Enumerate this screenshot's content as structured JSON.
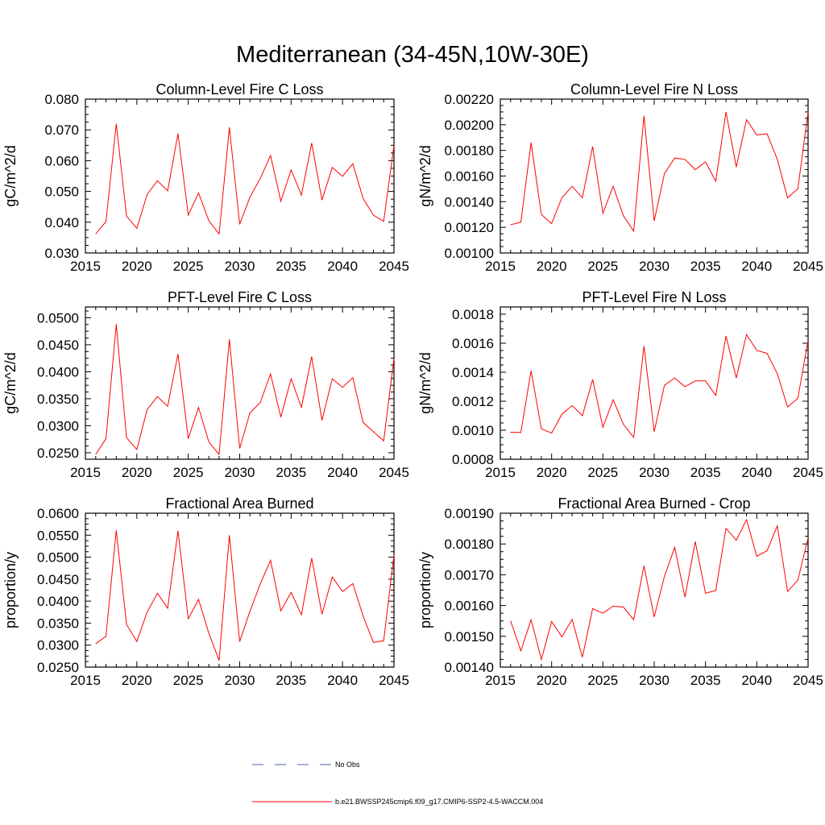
{
  "figure": {
    "title": "Mediterranean (34-45N,10W-30E)"
  },
  "colors": {
    "model_line": "#ff0000",
    "obs_line": "#4a5fb0",
    "axes": "#000000"
  },
  "legend": {
    "entries": [
      {
        "label": "No Obs",
        "style": "dashed",
        "color": "#4a5fb0"
      },
      {
        "label": "b.e21.BWSSP245cmip6.f09_g17.CMIP6-SSP2-4.5-WACCM.004",
        "style": "solid",
        "color": "#ff0000"
      }
    ]
  },
  "chart_data": [
    {
      "type": "line",
      "title": "Column-Level Fire C Loss",
      "ylabel": "gC/m^2/d",
      "xlabel": "",
      "xlim": [
        2015,
        2045
      ],
      "xticks": [
        2015,
        2020,
        2025,
        2030,
        2035,
        2040,
        2045
      ],
      "ylim": [
        0.03,
        0.08
      ],
      "yticks": [
        "0.030",
        "0.040",
        "0.050",
        "0.060",
        "0.070",
        "0.080"
      ],
      "x": [
        2016,
        2017,
        2018,
        2019,
        2020,
        2021,
        2022,
        2023,
        2024,
        2025,
        2026,
        2027,
        2028,
        2029,
        2030,
        2031,
        2032,
        2033,
        2034,
        2035,
        2036,
        2037,
        2038,
        2039,
        2040,
        2041,
        2042,
        2043,
        2044,
        2045
      ],
      "values": [
        0.0362,
        0.0402,
        0.072,
        0.042,
        0.038,
        0.049,
        0.0535,
        0.0502,
        0.0688,
        0.0423,
        0.0495,
        0.0405,
        0.0362,
        0.0708,
        0.0393,
        0.0482,
        0.0542,
        0.0617,
        0.0468,
        0.057,
        0.0488,
        0.0657,
        0.0472,
        0.0578,
        0.0549,
        0.059,
        0.0477,
        0.0423,
        0.0403,
        0.065
      ]
    },
    {
      "type": "line",
      "title": "Column-Level Fire N Loss",
      "ylabel": "gN/m^2/d",
      "xlabel": "",
      "xlim": [
        2015,
        2045
      ],
      "xticks": [
        2015,
        2020,
        2025,
        2030,
        2035,
        2040,
        2045
      ],
      "ylim": [
        0.001,
        0.0022
      ],
      "yticks": [
        "0.00100",
        "0.00120",
        "0.00140",
        "0.00160",
        "0.00180",
        "0.00200",
        "0.00220"
      ],
      "x": [
        2016,
        2017,
        2018,
        2019,
        2020,
        2021,
        2022,
        2023,
        2024,
        2025,
        2026,
        2027,
        2028,
        2029,
        2030,
        2031,
        2032,
        2033,
        2034,
        2035,
        2036,
        2037,
        2038,
        2039,
        2040,
        2041,
        2042,
        2043,
        2044,
        2045
      ],
      "values": [
        0.00122,
        0.00124,
        0.00186,
        0.0013,
        0.00123,
        0.00143,
        0.00152,
        0.00143,
        0.00183,
        0.00131,
        0.00152,
        0.00129,
        0.00117,
        0.00207,
        0.00125,
        0.00162,
        0.00174,
        0.00173,
        0.00165,
        0.00171,
        0.00156,
        0.0021,
        0.00167,
        0.00204,
        0.00192,
        0.00193,
        0.00173,
        0.00143,
        0.0015,
        0.0021
      ]
    },
    {
      "type": "line",
      "title": "PFT-Level Fire C Loss",
      "ylabel": "gC/m^2/d",
      "xlabel": "",
      "xlim": [
        2015,
        2045
      ],
      "xticks": [
        2015,
        2020,
        2025,
        2030,
        2035,
        2040,
        2045
      ],
      "ylim": [
        0.0238,
        0.052
      ],
      "yticks": [
        "0.0250",
        "0.0300",
        "0.0350",
        "0.0400",
        "0.0450",
        "0.0500"
      ],
      "x": [
        2016,
        2017,
        2018,
        2019,
        2020,
        2021,
        2022,
        2023,
        2024,
        2025,
        2026,
        2027,
        2028,
        2029,
        2030,
        2031,
        2032,
        2033,
        2034,
        2035,
        2036,
        2037,
        2038,
        2039,
        2040,
        2041,
        2042,
        2043,
        2044,
        2045
      ],
      "values": [
        0.0247,
        0.0276,
        0.0488,
        0.0278,
        0.0256,
        0.033,
        0.0354,
        0.0336,
        0.0433,
        0.0276,
        0.0334,
        0.027,
        0.0247,
        0.046,
        0.0258,
        0.0324,
        0.0343,
        0.0396,
        0.0316,
        0.0387,
        0.0334,
        0.0428,
        0.031,
        0.0387,
        0.0371,
        0.0389,
        0.0306,
        0.0289,
        0.0272,
        0.0425
      ]
    },
    {
      "type": "line",
      "title": "PFT-Level Fire N Loss",
      "ylabel": "gN/m^2/d",
      "xlabel": "",
      "xlim": [
        2015,
        2045
      ],
      "xticks": [
        2015,
        2020,
        2025,
        2030,
        2035,
        2040,
        2045
      ],
      "ylim": [
        0.0008,
        0.00185
      ],
      "yticks": [
        "0.0008",
        "0.0010",
        "0.0012",
        "0.0014",
        "0.0016",
        "0.0018"
      ],
      "x": [
        2016,
        2017,
        2018,
        2019,
        2020,
        2021,
        2022,
        2023,
        2024,
        2025,
        2026,
        2027,
        2028,
        2029,
        2030,
        2031,
        2032,
        2033,
        2034,
        2035,
        2036,
        2037,
        2038,
        2039,
        2040,
        2041,
        2042,
        2043,
        2044,
        2045
      ],
      "values": [
        0.000986,
        0.000984,
        0.00141,
        0.00101,
        0.00098,
        0.00111,
        0.00117,
        0.0011,
        0.00135,
        0.00102,
        0.00121,
        0.00104,
        0.00095,
        0.00158,
        0.00099,
        0.00131,
        0.00136,
        0.0013,
        0.00134,
        0.00134,
        0.00124,
        0.00165,
        0.00136,
        0.00166,
        0.00155,
        0.00153,
        0.00139,
        0.00116,
        0.00122,
        0.00162
      ]
    },
    {
      "type": "line",
      "title": "Fractional Area Burned",
      "ylabel": "proportion/y",
      "xlabel": "",
      "xlim": [
        2015,
        2045
      ],
      "xticks": [
        2015,
        2020,
        2025,
        2030,
        2035,
        2040,
        2045
      ],
      "ylim": [
        0.025,
        0.06
      ],
      "yticks": [
        "0.0250",
        "0.0300",
        "0.0350",
        "0.0400",
        "0.0450",
        "0.0500",
        "0.0550",
        "0.0600"
      ],
      "x": [
        2016,
        2017,
        2018,
        2019,
        2020,
        2021,
        2022,
        2023,
        2024,
        2025,
        2026,
        2027,
        2028,
        2029,
        2030,
        2031,
        2032,
        2033,
        2034,
        2035,
        2036,
        2037,
        2038,
        2039,
        2040,
        2041,
        2042,
        2043,
        2044,
        2045
      ],
      "values": [
        0.0303,
        0.032,
        0.0561,
        0.0347,
        0.0308,
        0.0375,
        0.0418,
        0.0384,
        0.056,
        0.036,
        0.0404,
        0.0327,
        0.0265,
        0.055,
        0.0308,
        0.0377,
        0.0439,
        0.0493,
        0.0378,
        0.042,
        0.0369,
        0.0498,
        0.037,
        0.0455,
        0.0422,
        0.044,
        0.0366,
        0.0306,
        0.031,
        0.0505
      ]
    },
    {
      "type": "line",
      "title": "Fractional Area Burned - Crop",
      "ylabel": "proportion/y",
      "xlabel": "",
      "xlim": [
        2015,
        2045
      ],
      "xticks": [
        2015,
        2020,
        2025,
        2030,
        2035,
        2040,
        2045
      ],
      "ylim": [
        0.0014,
        0.0019
      ],
      "yticks": [
        "0.00140",
        "0.00150",
        "0.00160",
        "0.00170",
        "0.00180",
        "0.00190"
      ],
      "x": [
        2016,
        2017,
        2018,
        2019,
        2020,
        2021,
        2022,
        2023,
        2024,
        2025,
        2026,
        2027,
        2028,
        2029,
        2030,
        2031,
        2032,
        2033,
        2034,
        2035,
        2036,
        2037,
        2038,
        2039,
        2040,
        2041,
        2042,
        2043,
        2044,
        2045
      ],
      "values": [
        0.00155,
        0.001453,
        0.001554,
        0.001425,
        0.001548,
        0.001498,
        0.001555,
        0.001432,
        0.00159,
        0.001575,
        0.001598,
        0.001595,
        0.001554,
        0.001729,
        0.001563,
        0.001695,
        0.001789,
        0.001627,
        0.001808,
        0.00164,
        0.001649,
        0.001851,
        0.001812,
        0.001879,
        0.00176,
        0.001778,
        0.001859,
        0.001646,
        0.001682,
        0.00182
      ]
    }
  ]
}
